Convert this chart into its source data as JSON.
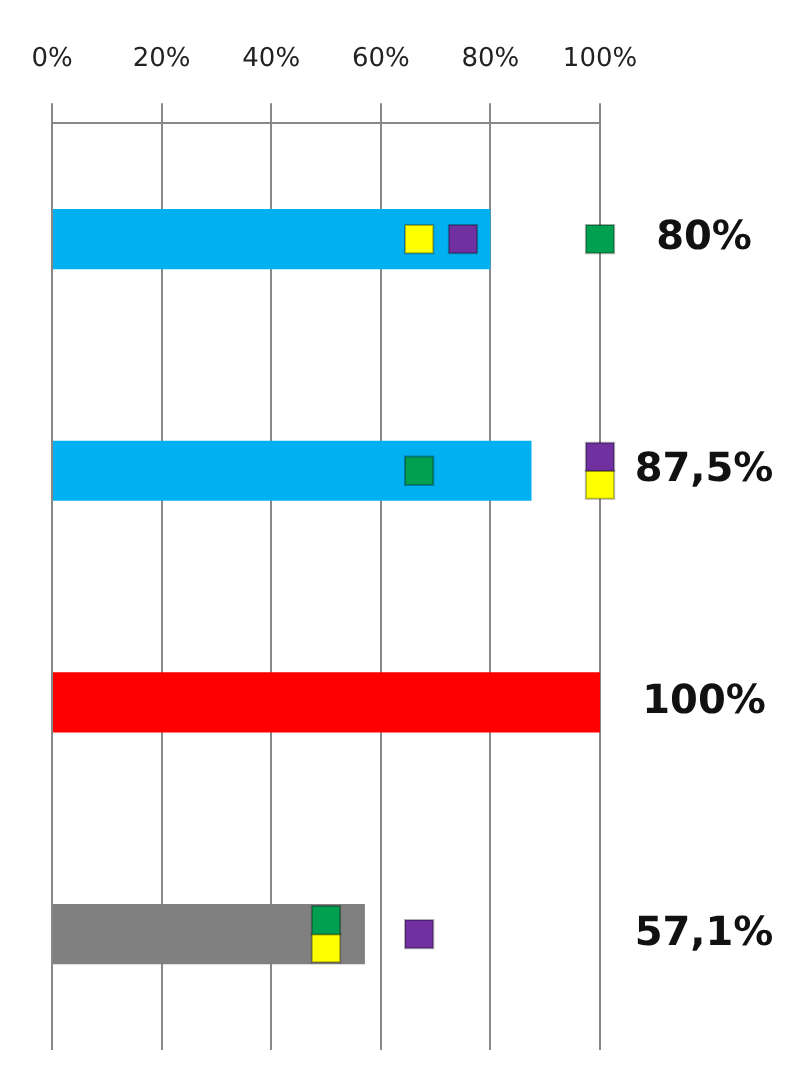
{
  "chart_data": {
    "type": "bar",
    "orientation": "horizontal",
    "categories": [
      null,
      null,
      null,
      null
    ],
    "values": [
      80,
      87.5,
      100,
      57.1
    ],
    "colors": [
      "#00b0f0",
      "#00b0f0",
      "#ff0000",
      "#808080"
    ],
    "value_labels": [
      "80%",
      "87,5%",
      "100%",
      "57,1%"
    ],
    "series": [
      {
        "type": "scatter",
        "color": "#00a050",
        "values": [
          100,
          67,
          null,
          50
        ]
      },
      {
        "type": "scatter",
        "color": "#7030a0",
        "values": [
          75,
          100,
          null,
          67
        ]
      },
      {
        "type": "scatter",
        "color": "#ffff00",
        "values": [
          67,
          100,
          null,
          50
        ]
      }
    ],
    "marker": "square",
    "xlim": [
      0,
      100
    ],
    "xticks": [
      {
        "value": 0,
        "label": "0%"
      },
      {
        "value": 20,
        "label": "20%"
      },
      {
        "value": 40,
        "label": "40%"
      },
      {
        "value": 60,
        "label": "60%"
      },
      {
        "value": 80,
        "label": "80%"
      },
      {
        "value": 100,
        "label": "100%"
      }
    ],
    "grid": "x",
    "legend": false,
    "tick_labels": "x"
  }
}
